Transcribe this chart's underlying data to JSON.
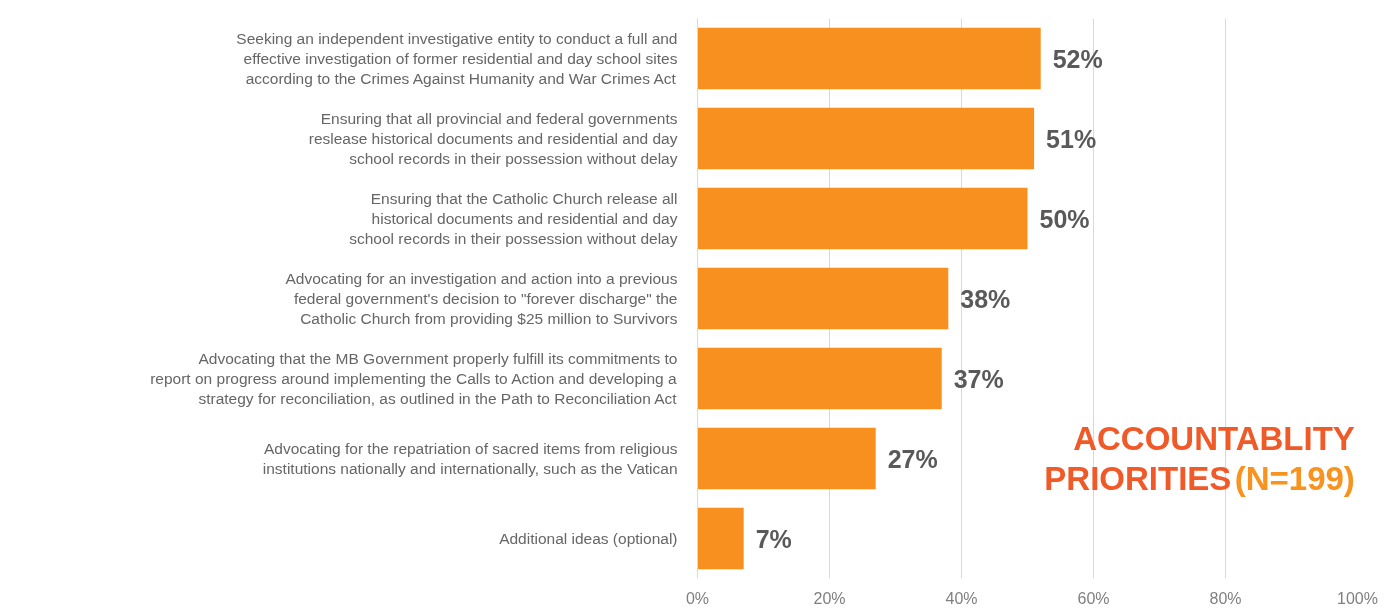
{
  "chart_data": {
    "type": "bar",
    "orientation": "horizontal",
    "title": "ACCOUNTABLITY PRIORITIES",
    "subtitle": "(N=199)",
    "categories": [
      "Seeking an independent investigative entity to conduct a full and\neffective investigation of former residential and day school sites\naccording to the Crimes Against Humanity and War Crimes Act",
      "Ensuring that all provincial and federal governments\nreslease historical documents and residential and day\nschool records in their possession without delay",
      "Ensuring that the Catholic Church release all\nhistorical documents and residential and day\nschool records in their possession without delay",
      "Advocating for an investigation and action into a previous\nfederal government's decision to \"forever discharge\" the\nCatholic Church from providing $25 million to Survivors",
      "Advocating that the MB Government properly fulfill its commitments to\nreport on progress around implementing the Calls to Action and developing a\nstrategy for reconciliation, as outlined in the Path to Reconciliation Act",
      "Advocating for the repatriation of sacred items from religious\ninstitutions nationally and internationally, such as the Vatican",
      "Additional ideas (optional)"
    ],
    "values": [
      52,
      51,
      50,
      38,
      37,
      27,
      7
    ],
    "color": "#f7901e",
    "value_labels": [
      "52%",
      "51%",
      "50%",
      "38%",
      "37%",
      "27%",
      "7%"
    ],
    "xlim": [
      0,
      100
    ],
    "xticks": [
      {
        "value": 0,
        "label": "0%"
      },
      {
        "value": 20,
        "label": "20%"
      },
      {
        "value": 40,
        "label": "40%"
      },
      {
        "value": 60,
        "label": "60%"
      },
      {
        "value": 80,
        "label": "80%"
      },
      {
        "value": 100,
        "label": "100%"
      }
    ],
    "grid": "x"
  }
}
